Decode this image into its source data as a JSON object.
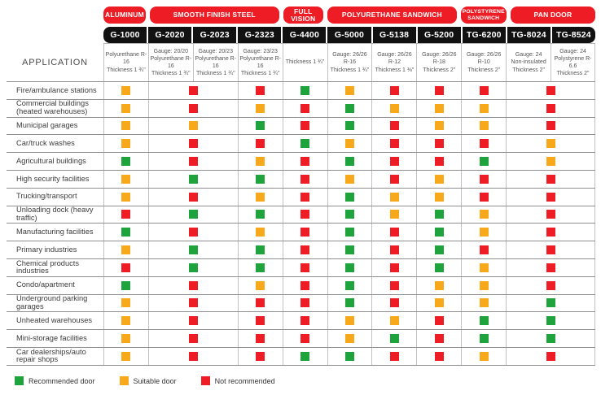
{
  "colors": {
    "recommended": "#1fa33c",
    "suitable": "#f7a81b",
    "not_recommended": "#ee1c25",
    "pill_red": "#ee1c25",
    "model_bar_black": "#111111"
  },
  "header": {
    "application_label": "APPLICATION"
  },
  "legend": {
    "items": [
      {
        "rating": "recommended",
        "label": "Recommended door"
      },
      {
        "rating": "suitable",
        "label": "Suitable door"
      },
      {
        "rating": "not-recommended",
        "label": "Not recommended"
      }
    ]
  },
  "chart_data": {
    "type": "table",
    "categories": [
      {
        "label": "ALUMINUM",
        "span": 1
      },
      {
        "label": "SMOOTH FINISH STEEL",
        "span": 3
      },
      {
        "label": "FULL VISION",
        "span": 1
      },
      {
        "label": "POLYURETHANE SANDWICH",
        "span": 3
      },
      {
        "label": "POLYSTYRENE SANDWICH",
        "span": 1
      },
      {
        "label": "PAN DOOR",
        "span": 2
      }
    ],
    "models": [
      "G-1000",
      "G-2020",
      "G-2023",
      "G-2323",
      "G-4400",
      "G-5000",
      "G-5138",
      "G-5200",
      "TG-6200",
      "TG-8024",
      "TG-8524"
    ],
    "specs": [
      [
        "Polyurethane R-16",
        "Thickness 1 ¾\""
      ],
      [
        "Gauge: 20/20",
        "Polyurethane R-16",
        "Thickness 1 ¾\""
      ],
      [
        "Gauge: 20/23",
        "Polyurethane R-16",
        "Thickness 1 ¾\""
      ],
      [
        "Gauge: 23/23",
        "Polyurethane R-16",
        "Thickness 1 ¾\""
      ],
      [
        "Thickness 1 ¾\""
      ],
      [
        "Gauge: 26/26",
        "R-16",
        "Thickness 1 ¾\""
      ],
      [
        "Gauge: 26/26",
        "R-12",
        "Thickness 1 ⅜\""
      ],
      [
        "Gauge: 26/26",
        "R-18",
        "Thickness 2\""
      ],
      [
        "Gauge: 26/26",
        "R-10",
        "Thickness 2\""
      ],
      [
        "Gauge: 24",
        "Non-insulated",
        "Thickness 2\""
      ],
      [
        "Gauge: 24",
        "Polystyrene R-6.6",
        "Thickness 2\""
      ]
    ],
    "rating_columns": [
      {
        "models": [
          "G-1000"
        ],
        "span": 1
      },
      {
        "models": [
          "G-2020",
          "G-2023"
        ],
        "span": 2
      },
      {
        "models": [
          "G-2323"
        ],
        "span": 1
      },
      {
        "models": [
          "G-4400"
        ],
        "span": 1
      },
      {
        "models": [
          "G-5000"
        ],
        "span": 1
      },
      {
        "models": [
          "G-5138"
        ],
        "span": 1
      },
      {
        "models": [
          "G-5200"
        ],
        "span": 1
      },
      {
        "models": [
          "TG-6200"
        ],
        "span": 1
      },
      {
        "models": [
          "TG-8024",
          "TG-8524"
        ],
        "span": 2
      }
    ],
    "rows": [
      {
        "application": "Fire/ambulance stations",
        "ratings": [
          "suitable",
          "not-recommended",
          "not-recommended",
          "recommended",
          "suitable",
          "not-recommended",
          "not-recommended",
          "not-recommended",
          "not-recommended"
        ]
      },
      {
        "application": "Commercial buildings (heated warehouses)",
        "ratings": [
          "suitable",
          "not-recommended",
          "suitable",
          "not-recommended",
          "recommended",
          "suitable",
          "suitable",
          "suitable",
          "not-recommended"
        ]
      },
      {
        "application": "Municipal garages",
        "ratings": [
          "suitable",
          "suitable",
          "recommended",
          "not-recommended",
          "recommended",
          "not-recommended",
          "suitable",
          "suitable",
          "not-recommended"
        ]
      },
      {
        "application": "Car/truck washes",
        "ratings": [
          "suitable",
          "not-recommended",
          "not-recommended",
          "recommended",
          "suitable",
          "not-recommended",
          "not-recommended",
          "not-recommended",
          "suitable"
        ]
      },
      {
        "application": "Agricultural buildings",
        "ratings": [
          "recommended",
          "not-recommended",
          "suitable",
          "not-recommended",
          "recommended",
          "not-recommended",
          "not-recommended",
          "recommended",
          "suitable"
        ]
      },
      {
        "application": "High security facilities",
        "ratings": [
          "suitable",
          "recommended",
          "recommended",
          "not-recommended",
          "suitable",
          "not-recommended",
          "suitable",
          "not-recommended",
          "not-recommended"
        ]
      },
      {
        "application": "Trucking/transport",
        "ratings": [
          "suitable",
          "not-recommended",
          "suitable",
          "not-recommended",
          "recommended",
          "suitable",
          "suitable",
          "not-recommended",
          "not-recommended"
        ]
      },
      {
        "application": "Unloading dock (heavy traffic)",
        "ratings": [
          "not-recommended",
          "recommended",
          "recommended",
          "not-recommended",
          "recommended",
          "suitable",
          "recommended",
          "suitable",
          "not-recommended"
        ]
      },
      {
        "application": "Manufacturing facilities",
        "ratings": [
          "recommended",
          "not-recommended",
          "suitable",
          "not-recommended",
          "recommended",
          "not-recommended",
          "recommended",
          "suitable",
          "not-recommended"
        ]
      },
      {
        "application": "Primary industries",
        "ratings": [
          "suitable",
          "recommended",
          "recommended",
          "not-recommended",
          "recommended",
          "not-recommended",
          "recommended",
          "not-recommended",
          "not-recommended"
        ]
      },
      {
        "application": "Chemical products industries",
        "ratings": [
          "not-recommended",
          "recommended",
          "recommended",
          "not-recommended",
          "recommended",
          "not-recommended",
          "recommended",
          "suitable",
          "not-recommended"
        ]
      },
      {
        "application": "Condo/apartment",
        "ratings": [
          "recommended",
          "not-recommended",
          "suitable",
          "not-recommended",
          "recommended",
          "not-recommended",
          "suitable",
          "suitable",
          "not-recommended"
        ]
      },
      {
        "application": "Underground parking garages",
        "ratings": [
          "suitable",
          "not-recommended",
          "not-recommended",
          "not-recommended",
          "recommended",
          "not-recommended",
          "suitable",
          "suitable",
          "recommended"
        ]
      },
      {
        "application": "Unheated warehouses",
        "ratings": [
          "suitable",
          "not-recommended",
          "not-recommended",
          "not-recommended",
          "suitable",
          "suitable",
          "not-recommended",
          "recommended",
          "recommended"
        ]
      },
      {
        "application": "Mini-storage facilities",
        "ratings": [
          "suitable",
          "not-recommended",
          "not-recommended",
          "not-recommended",
          "suitable",
          "recommended",
          "not-recommended",
          "recommended",
          "recommended"
        ]
      },
      {
        "application": "Car dealerships/auto repair shops",
        "ratings": [
          "suitable",
          "not-recommended",
          "not-recommended",
          "recommended",
          "recommended",
          "not-recommended",
          "not-recommended",
          "suitable",
          "not-recommended"
        ]
      }
    ]
  }
}
